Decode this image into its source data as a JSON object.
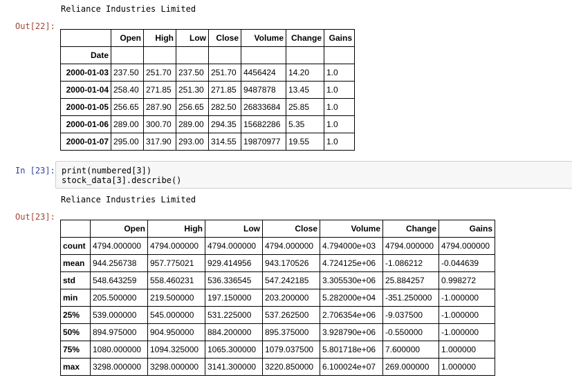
{
  "out22": {
    "prompt": "Out[22]:",
    "print_text": "Reliance Industries Limited",
    "table": {
      "index_name": "Date",
      "columns": [
        "Open",
        "High",
        "Low",
        "Close",
        "Volume",
        "Change",
        "Gains"
      ],
      "rows": [
        {
          "index": "2000-01-03",
          "values": [
            "237.50",
            "251.70",
            "237.50",
            "251.70",
            "4456424",
            "14.20",
            "1.0"
          ]
        },
        {
          "index": "2000-01-04",
          "values": [
            "258.40",
            "271.85",
            "251.30",
            "271.85",
            "9487878",
            "13.45",
            "1.0"
          ]
        },
        {
          "index": "2000-01-05",
          "values": [
            "256.65",
            "287.90",
            "256.65",
            "282.50",
            "26833684",
            "25.85",
            "1.0"
          ]
        },
        {
          "index": "2000-01-06",
          "values": [
            "289.00",
            "300.70",
            "289.00",
            "294.35",
            "15682286",
            "5.35",
            "1.0"
          ]
        },
        {
          "index": "2000-01-07",
          "values": [
            "295.00",
            "317.90",
            "293.00",
            "314.55",
            "19870977",
            "19.55",
            "1.0"
          ]
        }
      ]
    }
  },
  "in23": {
    "prompt": "In [23]:",
    "code_lines": [
      "print(numbered[3])",
      "stock_data[3].describe()"
    ]
  },
  "out23": {
    "prompt": "Out[23]:",
    "print_text": "Reliance Industries Limited",
    "table": {
      "columns": [
        "Open",
        "High",
        "Low",
        "Close",
        "Volume",
        "Change",
        "Gains"
      ],
      "rows": [
        {
          "index": "count",
          "values": [
            "4794.000000",
            "4794.000000",
            "4794.000000",
            "4794.000000",
            "4.794000e+03",
            "4794.000000",
            "4794.000000"
          ]
        },
        {
          "index": "mean",
          "values": [
            "944.256738",
            "957.775021",
            "929.414956",
            "943.170526",
            "4.724125e+06",
            "-1.086212",
            "-0.044639"
          ]
        },
        {
          "index": "std",
          "values": [
            "548.643259",
            "558.460231",
            "536.336545",
            "547.242185",
            "3.305530e+06",
            "25.884257",
            "0.998272"
          ]
        },
        {
          "index": "min",
          "values": [
            "205.500000",
            "219.500000",
            "197.150000",
            "203.200000",
            "5.282000e+04",
            "-351.250000",
            "-1.000000"
          ]
        },
        {
          "index": "25%",
          "values": [
            "539.000000",
            "545.000000",
            "531.225000",
            "537.262500",
            "2.706354e+06",
            "-9.037500",
            "-1.000000"
          ]
        },
        {
          "index": "50%",
          "values": [
            "894.975000",
            "904.950000",
            "884.200000",
            "895.375000",
            "3.928790e+06",
            "-0.550000",
            "-1.000000"
          ]
        },
        {
          "index": "75%",
          "values": [
            "1080.000000",
            "1094.325000",
            "1065.300000",
            "1079.037500",
            "5.801718e+06",
            "7.600000",
            "1.000000"
          ]
        },
        {
          "index": "max",
          "values": [
            "3298.000000",
            "3298.000000",
            "3141.300000",
            "3220.850000",
            "6.100024e+07",
            "269.000000",
            "1.000000"
          ]
        }
      ]
    }
  }
}
